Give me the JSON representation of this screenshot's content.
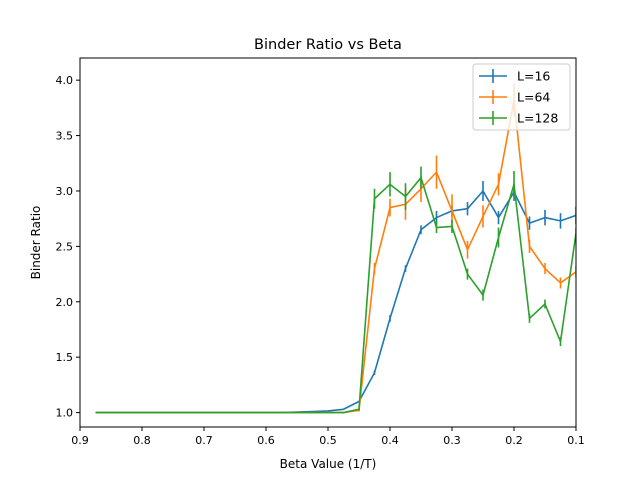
{
  "chart_data": {
    "type": "line",
    "title": "Binder Ratio vs Beta",
    "xlabel": "Beta Value (1/T)",
    "ylabel": "Binder Ratio",
    "xlim": [
      0.9,
      0.1
    ],
    "ylim": [
      0.87,
      4.2
    ],
    "x_inverted": true,
    "grid": false,
    "legend_position": "top-right",
    "xticks": [
      0.9,
      0.8,
      0.7,
      0.6,
      0.5,
      0.4,
      0.3,
      0.2,
      0.1
    ],
    "xtick_labels": [
      "0.9",
      "0.8",
      "0.7",
      "0.6",
      "0.5",
      "0.4",
      "0.3",
      "0.2",
      "0.1"
    ],
    "yticks": [
      1.0,
      1.5,
      2.0,
      2.5,
      3.0,
      3.5,
      4.0
    ],
    "ytick_labels": [
      "1.0",
      "1.5",
      "2.0",
      "2.5",
      "3.0",
      "3.5",
      "4.0"
    ],
    "x": [
      0.875,
      0.85,
      0.825,
      0.8,
      0.775,
      0.75,
      0.725,
      0.7,
      0.675,
      0.65,
      0.625,
      0.6,
      0.575,
      0.55,
      0.525,
      0.5,
      0.475,
      0.45,
      0.425,
      0.4,
      0.375,
      0.35,
      0.325,
      0.3,
      0.275,
      0.25,
      0.225,
      0.2,
      0.175,
      0.15,
      0.125,
      0.1
    ],
    "series": [
      {
        "name": "L=16",
        "color": "#1f77b4",
        "values": [
          1.0,
          1.0,
          1.0,
          1.0,
          1.0,
          1.0,
          1.0,
          1.0,
          1.0,
          1.0,
          1.0,
          1.0,
          1.0,
          1.005,
          1.01,
          1.015,
          1.03,
          1.1,
          1.36,
          1.85,
          2.3,
          2.65,
          2.76,
          2.82,
          2.84,
          3.0,
          2.76,
          2.99,
          2.71,
          2.76,
          2.73,
          2.78
        ],
        "errors": [
          0,
          0,
          0,
          0,
          0,
          0,
          0,
          0,
          0,
          0,
          0,
          0,
          0,
          0,
          0,
          0,
          0,
          0,
          0.02,
          0.03,
          0.03,
          0.04,
          0.06,
          0.05,
          0.06,
          0.09,
          0.06,
          0.08,
          0.06,
          0.07,
          0.07,
          0.08
        ]
      },
      {
        "name": "L=64",
        "color": "#ff7f0e",
        "values": [
          1.0,
          1.0,
          1.0,
          1.0,
          1.0,
          1.0,
          1.0,
          1.0,
          1.0,
          1.0,
          1.0,
          1.0,
          1.0,
          1.0,
          1.0,
          1.0,
          1.0,
          1.02,
          2.3,
          2.85,
          2.88,
          3.02,
          3.17,
          2.82,
          2.47,
          2.77,
          3.06,
          3.82,
          2.5,
          2.3,
          2.17,
          2.27
        ],
        "errors": [
          0,
          0,
          0,
          0,
          0,
          0,
          0,
          0,
          0,
          0,
          0,
          0,
          0,
          0,
          0,
          0,
          0,
          0.01,
          0.05,
          0.08,
          0.14,
          0.12,
          0.15,
          0.15,
          0.08,
          0.1,
          0.1,
          0.15,
          0.06,
          0.05,
          0.05,
          0.05
        ]
      },
      {
        "name": "L=128",
        "color": "#2ca02c",
        "values": [
          1.0,
          1.0,
          1.0,
          1.0,
          1.0,
          1.0,
          1.0,
          1.0,
          1.0,
          1.0,
          1.0,
          1.0,
          1.0,
          1.0,
          1.0,
          1.0,
          1.0,
          1.03,
          2.93,
          3.06,
          2.95,
          3.12,
          2.67,
          2.68,
          2.25,
          2.06,
          2.58,
          3.06,
          1.85,
          1.98,
          1.64,
          2.62
        ],
        "errors": [
          0,
          0,
          0,
          0,
          0,
          0,
          0,
          0,
          0,
          0,
          0,
          0,
          0,
          0,
          0,
          0,
          0,
          0.01,
          0.09,
          0.11,
          0.12,
          0.1,
          0.05,
          0.06,
          0.05,
          0.05,
          0.09,
          0.12,
          0.04,
          0.04,
          0.04,
          0.05
        ]
      }
    ]
  }
}
